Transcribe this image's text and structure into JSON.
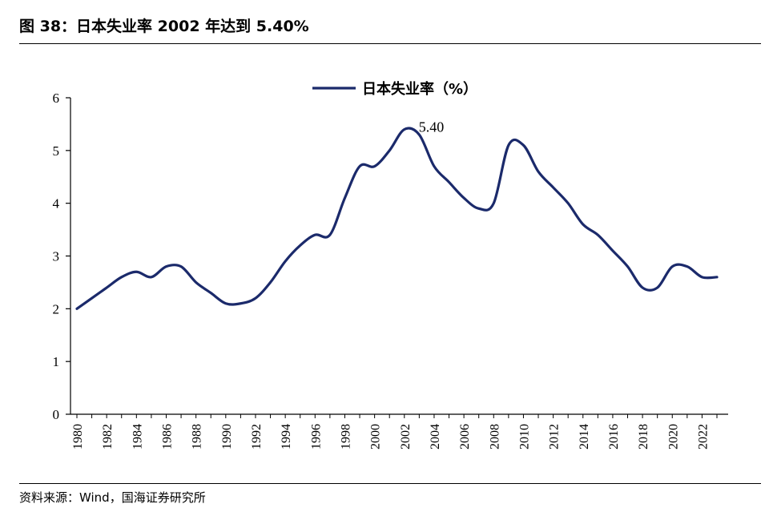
{
  "header": {
    "title": "图 38：日本失业率 2002 年达到 5.40%"
  },
  "footer": {
    "source": "资料来源：Wind，国海证券研究所"
  },
  "chart_data": {
    "type": "line",
    "title": "",
    "xlabel": "",
    "ylabel": "",
    "ylim": [
      0,
      6
    ],
    "xlim": [
      1980,
      2023
    ],
    "yticks": [
      "0",
      "1",
      "2",
      "3",
      "4",
      "5",
      "6"
    ],
    "xticks": [
      "1980",
      "1982",
      "1984",
      "1986",
      "1988",
      "1990",
      "1992",
      "1994",
      "1996",
      "1998",
      "2000",
      "2002",
      "2004",
      "2006",
      "2008",
      "2010",
      "2012",
      "2014",
      "2016",
      "2018",
      "2020",
      "2022"
    ],
    "legend": {
      "position": "top-center",
      "label": "日本失业率（%）"
    },
    "grid": false,
    "line_color": "#1b2a6b",
    "series": [
      {
        "name": "日本失业率（%）",
        "x": [
          1980,
          1981,
          1982,
          1983,
          1984,
          1985,
          1986,
          1987,
          1988,
          1989,
          1990,
          1991,
          1992,
          1993,
          1994,
          1995,
          1996,
          1997,
          1998,
          1999,
          2000,
          2001,
          2002,
          2003,
          2004,
          2005,
          2006,
          2007,
          2008,
          2009,
          2010,
          2011,
          2012,
          2013,
          2014,
          2015,
          2016,
          2017,
          2018,
          2019,
          2020,
          2021,
          2022,
          2023
        ],
        "values": [
          2.0,
          2.2,
          2.4,
          2.6,
          2.7,
          2.6,
          2.8,
          2.8,
          2.5,
          2.3,
          2.1,
          2.1,
          2.2,
          2.5,
          2.9,
          3.2,
          3.4,
          3.4,
          4.1,
          4.7,
          4.7,
          5.0,
          5.4,
          5.3,
          4.7,
          4.4,
          4.1,
          3.9,
          4.0,
          5.1,
          5.1,
          4.6,
          4.3,
          4.0,
          3.6,
          3.4,
          3.1,
          2.8,
          2.4,
          2.4,
          2.8,
          2.8,
          2.6,
          2.6
        ]
      }
    ],
    "annotations": [
      {
        "x": 2002,
        "y": 5.4,
        "text": "5.40"
      }
    ]
  }
}
